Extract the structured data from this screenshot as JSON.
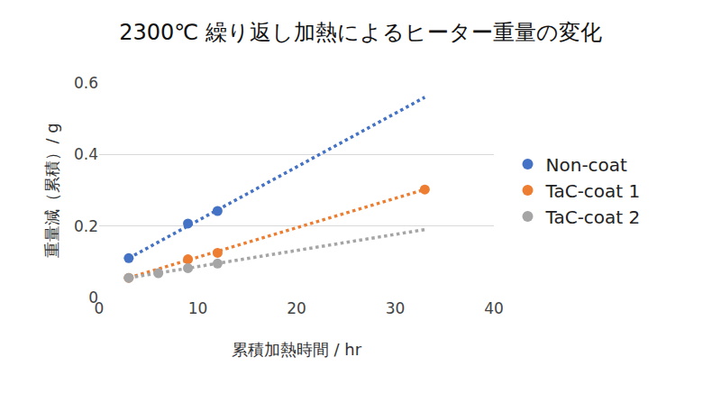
{
  "chart_data": {
    "type": "scatter",
    "title": "2300℃ 繰り返し加熱によるヒーター重量の変化",
    "x_label": "累積加熱時間 / hr",
    "y_label": "重量減（累積）/ g",
    "series": [
      {
        "name": "Non-coat",
        "color": "#4472c4",
        "marker": "circle",
        "line_style": "dotted",
        "x": [
          3,
          9,
          12
        ],
        "values": [
          0.11,
          0.207,
          0.242
        ],
        "trend": {
          "x": [
            3,
            33
          ],
          "values": [
            0.11,
            0.56
          ]
        }
      },
      {
        "name": "TaC-coat 1",
        "color": "#ed7d31",
        "marker": "circle",
        "line_style": "dotted",
        "x": [
          3,
          9,
          12,
          33
        ],
        "values": [
          0.055,
          0.107,
          0.125,
          0.302
        ],
        "trend": {
          "x": [
            3,
            33
          ],
          "values": [
            0.055,
            0.302
          ]
        }
      },
      {
        "name": "TaC-coat 2",
        "color": "#a5a5a5",
        "marker": "circle",
        "line_style": "dotted",
        "x": [
          3,
          6,
          9,
          12
        ],
        "values": [
          0.055,
          0.068,
          0.082,
          0.095
        ],
        "trend": {
          "x": [
            3,
            33
          ],
          "values": [
            0.055,
            0.19
          ]
        }
      }
    ],
    "xlim": [
      0,
      40
    ],
    "xticks": [
      0,
      10,
      20,
      30,
      40
    ],
    "ylim": [
      0,
      0.6
    ],
    "yticks": [
      0,
      0.2,
      0.4,
      0.6
    ],
    "grid": true,
    "legend": "right"
  }
}
